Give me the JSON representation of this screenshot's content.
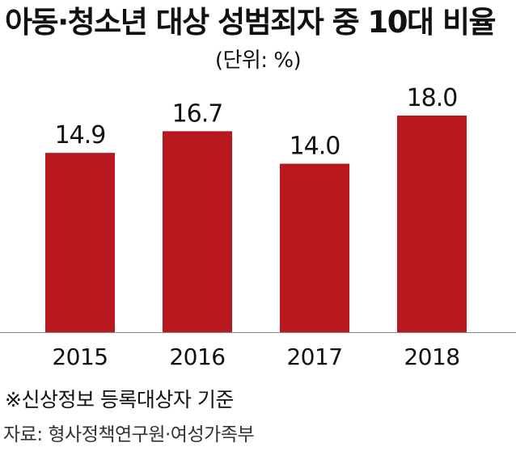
{
  "chart_data": {
    "type": "bar",
    "title": "아동·청소년 대상 성범죄자 중 10대 비율",
    "unit_label": "(단위: %)",
    "categories": [
      "2015",
      "2016",
      "2017",
      "2018"
    ],
    "values": [
      14.9,
      16.7,
      14.0,
      18.0
    ],
    "value_labels": [
      "14.9",
      "16.7",
      "14.0",
      "18.0"
    ],
    "bar_color": "#b8191f",
    "ylim": [
      0,
      20
    ],
    "grid": false
  },
  "footer": {
    "note": "※신상정보 등록대상자 기준",
    "source": "자료: 형사정책연구원·여성가족부"
  }
}
